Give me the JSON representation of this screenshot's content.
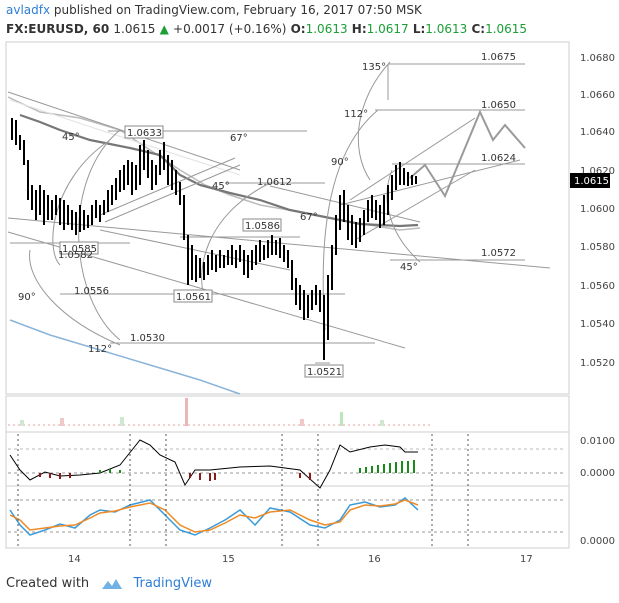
{
  "header": {
    "author": "avladfx",
    "published_text": "published on TradingView.com, February 16, 2017 07:50 MSK",
    "symbol": "FX:EURUSD, 60",
    "last": "1.0615",
    "change_arrow": "▲",
    "change": "+0.0017 (+0.16%)",
    "o_label": "O:",
    "o_val": "1.0613",
    "h_label": "H:",
    "h_val": "1.0617",
    "l_label": "L:",
    "l_val": "1.0613",
    "c_label": "C:",
    "c_val": "1.0615"
  },
  "chart_data": {
    "type": "ohlc",
    "price_axis": [
      "1.0680",
      "1.0660",
      "1.0640",
      "1.0620",
      "1.0600",
      "1.0580",
      "1.0560",
      "1.0540",
      "1.0520"
    ],
    "last_price_label": "1.0615",
    "x_axis": [
      "14",
      "15",
      "16",
      "17"
    ],
    "annotations": {
      "levels": [
        "1.0675",
        "1.0650",
        "1.0624",
        "1.0572",
        "1.0633",
        "1.0612",
        "1.0586",
        "1.0585",
        "1.0582",
        "1.0556",
        "1.0561",
        "1.0530",
        "1.0521"
      ],
      "angles": [
        "135°",
        "112°",
        "90°",
        "67°",
        "45°",
        "45°",
        "67°",
        "45°",
        "67°",
        "90°",
        "112°"
      ]
    },
    "osc1_axis": [
      "0.0100",
      "0.0000"
    ],
    "osc2_axis": [
      "0.0000"
    ]
  },
  "footer": {
    "created_with": "Created with",
    "brand": "TradingView"
  },
  "colors": {
    "up": "#1b9e36",
    "brand": "#2f7ed8",
    "bars": "#000000",
    "macd_pos": "#1a8a1a",
    "macd_neg": "#8b1a1a",
    "stoch_k": "#3a9ad9",
    "stoch_d": "#f08a24"
  }
}
